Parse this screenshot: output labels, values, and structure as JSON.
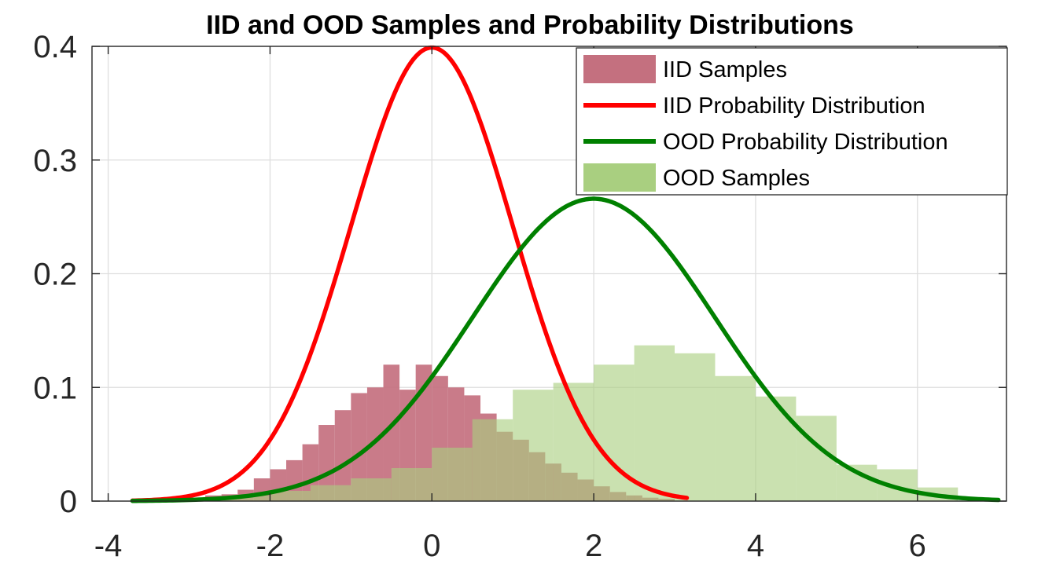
{
  "chart_data": {
    "type": "bar",
    "title": "IID and OOD Samples and Probability Distributions",
    "xlabel": "",
    "ylabel": "",
    "xlim": [
      -4.2,
      7.1
    ],
    "ylim": [
      0,
      0.4
    ],
    "xticks": [
      -4,
      -2,
      0,
      2,
      4,
      6
    ],
    "yticks": [
      0,
      0.1,
      0.2,
      0.3,
      0.4
    ],
    "xtick_labels": [
      "-4",
      "-2",
      "0",
      "2",
      "4",
      "6"
    ],
    "ytick_labels": [
      "0",
      "0.1",
      "0.2",
      "0.3",
      "0.4"
    ],
    "grid": true,
    "legend_position": "top-right",
    "legend": [
      {
        "label": "IID Samples",
        "kind": "patch",
        "color": "#c4707f"
      },
      {
        "label": "IID Probability Distribution",
        "kind": "line",
        "color": "#ff0000"
      },
      {
        "label": "OOD Probability Distribution",
        "kind": "line",
        "color": "#008000"
      },
      {
        "label": "OOD Samples",
        "kind": "patch",
        "color": "#a9cf80"
      }
    ],
    "series": [
      {
        "name": "IID Samples",
        "type": "histogram",
        "color": "#c4707f",
        "bin_width": 0.2,
        "x": [
          -3.1,
          -2.9,
          -2.7,
          -2.5,
          -2.3,
          -2.1,
          -1.9,
          -1.7,
          -1.5,
          -1.3,
          -1.1,
          -0.9,
          -0.7,
          -0.5,
          -0.3,
          -0.1,
          0.1,
          0.3,
          0.5,
          0.7,
          0.9,
          1.1,
          1.3,
          1.5,
          1.7,
          1.9,
          2.1,
          2.3,
          2.5,
          2.7,
          2.9
        ],
        "values": [
          0.001,
          0.0015,
          0.005,
          0.006,
          0.01,
          0.02,
          0.028,
          0.036,
          0.05,
          0.067,
          0.08,
          0.095,
          0.1,
          0.12,
          0.098,
          0.12,
          0.11,
          0.1,
          0.093,
          0.077,
          0.061,
          0.054,
          0.043,
          0.033,
          0.025,
          0.019,
          0.013,
          0.008,
          0.005,
          0.003,
          0.002
        ]
      },
      {
        "name": "OOD Samples",
        "type": "histogram",
        "color": "#a9cf80",
        "bin_width": 0.5,
        "x": [
          -3.25,
          -2.75,
          -2.25,
          -1.75,
          -1.25,
          -0.75,
          -0.25,
          0.25,
          0.75,
          1.25,
          1.75,
          2.25,
          2.75,
          3.25,
          3.75,
          4.25,
          4.75,
          5.25,
          5.75,
          6.25
        ],
        "values": [
          0.0015,
          0.003,
          0.005,
          0.009,
          0.014,
          0.02,
          0.029,
          0.047,
          0.072,
          0.098,
          0.104,
          0.12,
          0.137,
          0.13,
          0.11,
          0.092,
          0.075,
          0.032,
          0.028,
          0.012
        ]
      },
      {
        "name": "IID Probability Distribution",
        "type": "pdf",
        "distribution": "normal",
        "mean": 0,
        "std": 1,
        "x_range": [
          -3.7,
          3.15
        ],
        "color": "#ff0000"
      },
      {
        "name": "OOD Probability Distribution",
        "type": "pdf",
        "distribution": "normal",
        "mean": 2,
        "std": 1.5,
        "x_range": [
          -3.7,
          7
        ],
        "color": "#008000"
      }
    ]
  }
}
